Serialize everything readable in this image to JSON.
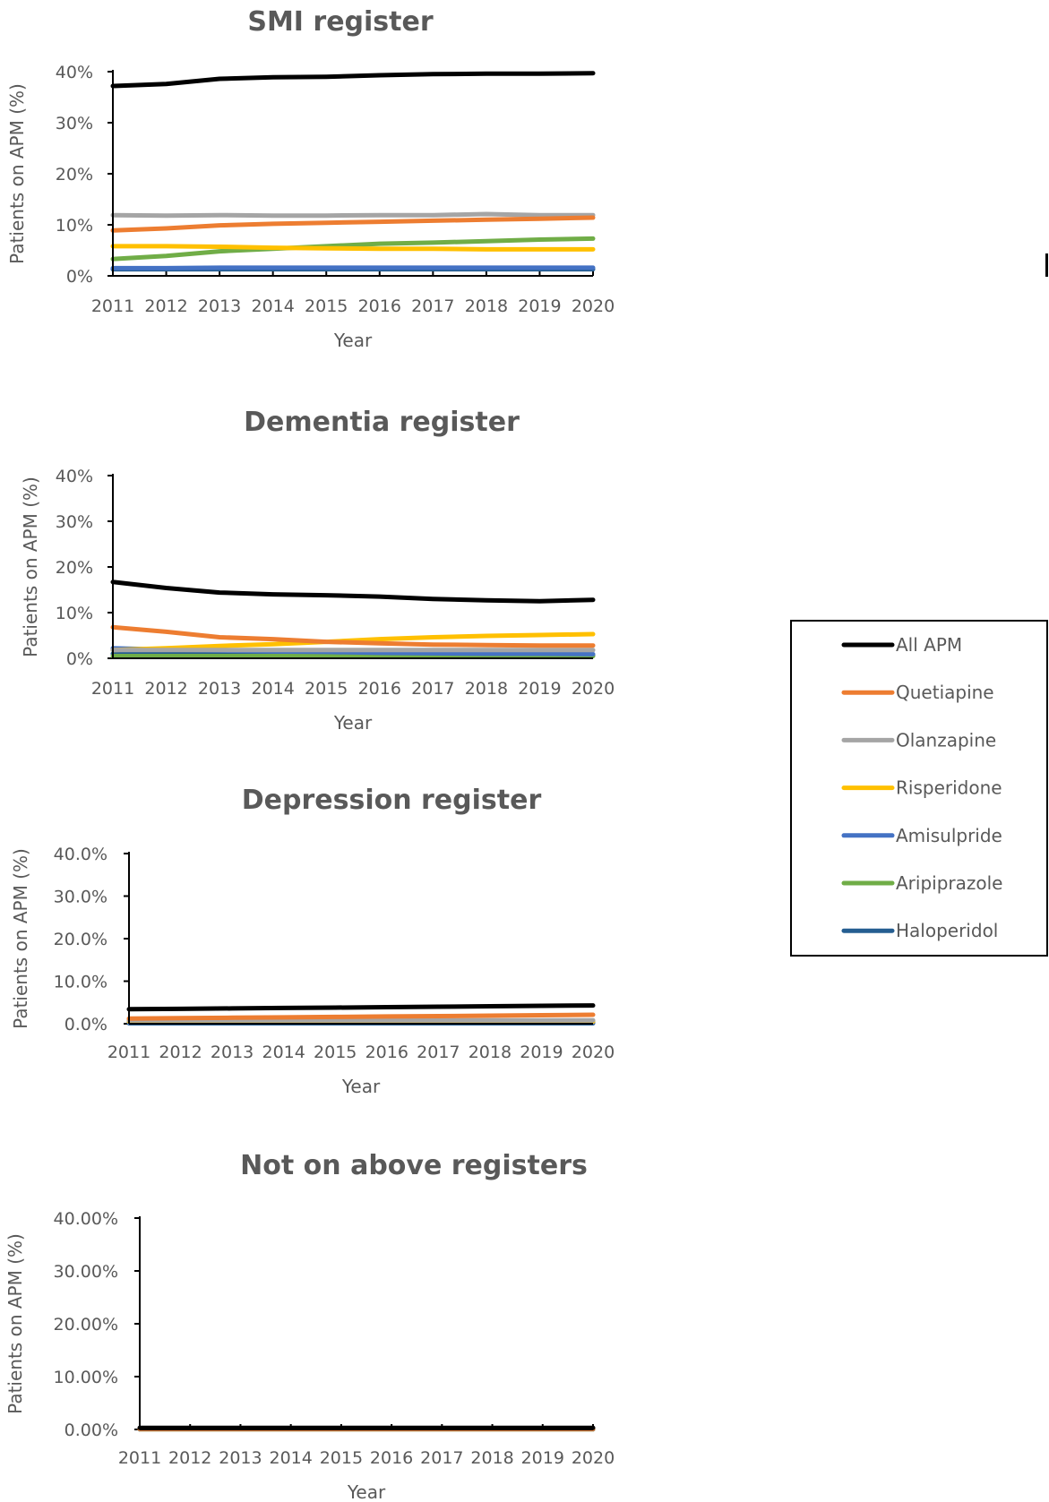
{
  "chart_data": [
    {
      "type": "line",
      "title": "SMI register",
      "xlabel": "Year",
      "ylabel": "Patients  on APM (%)",
      "x": [
        "2011",
        "2012",
        "2013",
        "2014",
        "2015",
        "2016",
        "2017",
        "2018",
        "2019",
        "2020"
      ],
      "ylim": [
        0,
        40
      ],
      "yticks": [
        "0%",
        "10%",
        "20%",
        "30%",
        "40%"
      ],
      "series": [
        {
          "name": "All APM",
          "color": "#000000",
          "values": [
            37.2,
            37.6,
            38.6,
            38.9,
            39.0,
            39.3,
            39.5,
            39.6,
            39.6,
            39.7
          ]
        },
        {
          "name": "Quetiapine",
          "color": "#ED7D31",
          "values": [
            8.9,
            9.3,
            9.9,
            10.2,
            10.4,
            10.6,
            10.8,
            11.0,
            11.2,
            11.4
          ]
        },
        {
          "name": "Olanzapine",
          "color": "#A5A5A5",
          "values": [
            11.9,
            11.8,
            11.9,
            11.8,
            11.8,
            11.9,
            11.9,
            12.1,
            11.9,
            11.9
          ]
        },
        {
          "name": "Risperidone",
          "color": "#FFC000",
          "values": [
            5.8,
            5.8,
            5.7,
            5.5,
            5.4,
            5.3,
            5.3,
            5.2,
            5.2,
            5.2
          ]
        },
        {
          "name": "Amisulpride",
          "color": "#4472C4",
          "values": [
            1.5,
            1.5,
            1.6,
            1.6,
            1.6,
            1.6,
            1.6,
            1.6,
            1.6,
            1.6
          ]
        },
        {
          "name": "Aripiprazole",
          "color": "#70AD47",
          "values": [
            3.3,
            3.9,
            4.8,
            5.3,
            5.8,
            6.3,
            6.5,
            6.8,
            7.1,
            7.3
          ]
        },
        {
          "name": "Haloperidol",
          "color": "#255E91",
          "values": [
            1.3,
            1.3,
            1.3,
            1.3,
            1.3,
            1.3,
            1.3,
            1.3,
            1.3,
            1.3
          ]
        }
      ]
    },
    {
      "type": "line",
      "title": "Dementia register",
      "xlabel": "Year",
      "ylabel": "Patients  on APM (%)",
      "x": [
        "2011",
        "2012",
        "2013",
        "2014",
        "2015",
        "2016",
        "2017",
        "2018",
        "2019",
        "2020"
      ],
      "ylim": [
        0,
        40
      ],
      "yticks": [
        "0%",
        "10%",
        "20%",
        "30%",
        "40%"
      ],
      "series": [
        {
          "name": "All APM",
          "color": "#000000",
          "values": [
            16.7,
            15.4,
            14.4,
            14.0,
            13.8,
            13.5,
            13.0,
            12.7,
            12.5,
            12.8
          ]
        },
        {
          "name": "Quetiapine",
          "color": "#ED7D31",
          "values": [
            6.8,
            5.8,
            4.6,
            4.2,
            3.6,
            3.3,
            3.0,
            2.9,
            2.8,
            2.8
          ]
        },
        {
          "name": "Olanzapine",
          "color": "#A5A5A5",
          "values": [
            1.8,
            1.8,
            1.8,
            1.8,
            1.8,
            1.8,
            1.8,
            1.8,
            1.8,
            1.8
          ]
        },
        {
          "name": "Risperidone",
          "color": "#FFC000",
          "values": [
            1.8,
            2.2,
            2.7,
            3.1,
            3.6,
            4.2,
            4.6,
            4.9,
            5.1,
            5.3
          ]
        },
        {
          "name": "Amisulpride",
          "color": "#4472C4",
          "values": [
            2.2,
            1.9,
            1.7,
            1.5,
            1.4,
            1.2,
            1.1,
            1.0,
            1.0,
            0.9
          ]
        },
        {
          "name": "Aripiprazole",
          "color": "#70AD47",
          "values": [
            0.5,
            0.5,
            0.5,
            0.5,
            0.5,
            0.5,
            0.5,
            0.5,
            0.5,
            0.5
          ]
        },
        {
          "name": "Haloperidol",
          "color": "#255E91",
          "values": [
            1.0,
            1.0,
            0.9,
            0.9,
            0.8,
            0.8,
            0.7,
            0.6,
            0.6,
            0.6
          ]
        }
      ]
    },
    {
      "type": "line",
      "title": "Depression register",
      "xlabel": "Year",
      "ylabel": "Patients  on APM (%)",
      "x": [
        "2011",
        "2012",
        "2013",
        "2014",
        "2015",
        "2016",
        "2017",
        "2018",
        "2019",
        "2020"
      ],
      "ylim": [
        0,
        40
      ],
      "yticks": [
        "0.0%",
        "10.0%",
        "20.0%",
        "30.0%",
        "40.0%"
      ],
      "series": [
        {
          "name": "All APM",
          "color": "#000000",
          "values": [
            3.4,
            3.5,
            3.6,
            3.7,
            3.8,
            3.9,
            4.0,
            4.1,
            4.2,
            4.3
          ]
        },
        {
          "name": "Quetiapine",
          "color": "#ED7D31",
          "values": [
            1.2,
            1.3,
            1.4,
            1.5,
            1.6,
            1.7,
            1.8,
            1.9,
            2.0,
            2.1
          ]
        },
        {
          "name": "Olanzapine",
          "color": "#A5A5A5",
          "values": [
            0.8,
            0.8,
            0.8,
            0.8,
            0.8,
            0.8,
            0.8,
            0.8,
            0.8,
            0.8
          ]
        },
        {
          "name": "Risperidone",
          "color": "#FFC000",
          "values": [
            0.5,
            0.5,
            0.5,
            0.5,
            0.5,
            0.5,
            0.5,
            0.5,
            0.5,
            0.5
          ]
        },
        {
          "name": "Amisulpride",
          "color": "#4472C4",
          "values": [
            0.3,
            0.3,
            0.3,
            0.3,
            0.3,
            0.3,
            0.3,
            0.3,
            0.3,
            0.3
          ]
        },
        {
          "name": "Aripiprazole",
          "color": "#70AD47",
          "values": [
            0.4,
            0.4,
            0.4,
            0.4,
            0.4,
            0.4,
            0.4,
            0.4,
            0.5,
            0.5
          ]
        },
        {
          "name": "Haloperidol",
          "color": "#255E91",
          "values": [
            0.1,
            0.1,
            0.1,
            0.1,
            0.1,
            0.1,
            0.1,
            0.1,
            0.1,
            0.1
          ]
        }
      ]
    },
    {
      "type": "line",
      "title": "Not on above registers",
      "xlabel": "Year",
      "ylabel": "Patients  on APM (%)",
      "x": [
        "2011",
        "2012",
        "2013",
        "2014",
        "2015",
        "2016",
        "2017",
        "2018",
        "2019",
        "2020"
      ],
      "ylim": [
        0,
        40
      ],
      "yticks": [
        "0.00%",
        "10.00%",
        "20.00%",
        "30.00%",
        "40.00%"
      ],
      "series": [
        {
          "name": "All APM",
          "color": "#000000",
          "values": [
            0.3,
            0.3,
            0.3,
            0.3,
            0.3,
            0.3,
            0.3,
            0.3,
            0.3,
            0.3
          ]
        },
        {
          "name": "Quetiapine",
          "color": "#ED7D31",
          "values": [
            0.1,
            0.1,
            0.1,
            0.1,
            0.1,
            0.1,
            0.1,
            0.1,
            0.1,
            0.1
          ]
        },
        {
          "name": "Olanzapine",
          "color": "#A5A5A5",
          "values": [
            0.05,
            0.05,
            0.05,
            0.05,
            0.05,
            0.05,
            0.05,
            0.05,
            0.05,
            0.05
          ]
        },
        {
          "name": "Risperidone",
          "color": "#FFC000",
          "values": [
            0.05,
            0.05,
            0.05,
            0.05,
            0.05,
            0.05,
            0.05,
            0.05,
            0.05,
            0.05
          ]
        },
        {
          "name": "Amisulpride",
          "color": "#4472C4",
          "values": [
            0.02,
            0.02,
            0.02,
            0.02,
            0.02,
            0.02,
            0.02,
            0.02,
            0.02,
            0.02
          ]
        },
        {
          "name": "Aripiprazole",
          "color": "#70AD47",
          "values": [
            0.02,
            0.02,
            0.02,
            0.02,
            0.02,
            0.02,
            0.02,
            0.02,
            0.02,
            0.02
          ]
        },
        {
          "name": "Haloperidol",
          "color": "#255E91",
          "values": [
            0.01,
            0.01,
            0.01,
            0.01,
            0.01,
            0.01,
            0.01,
            0.01,
            0.01,
            0.01
          ]
        }
      ]
    }
  ],
  "legend": {
    "items": [
      {
        "label": "All APM",
        "color": "#000000"
      },
      {
        "label": "Quetiapine",
        "color": "#ED7D31"
      },
      {
        "label": "Olanzapine",
        "color": "#A5A5A5"
      },
      {
        "label": "Risperidone",
        "color": "#FFC000"
      },
      {
        "label": "Amisulpride",
        "color": "#4472C4"
      },
      {
        "label": "Aripiprazole",
        "color": "#70AD47"
      },
      {
        "label": "Haloperidol",
        "color": "#255E91"
      }
    ]
  }
}
